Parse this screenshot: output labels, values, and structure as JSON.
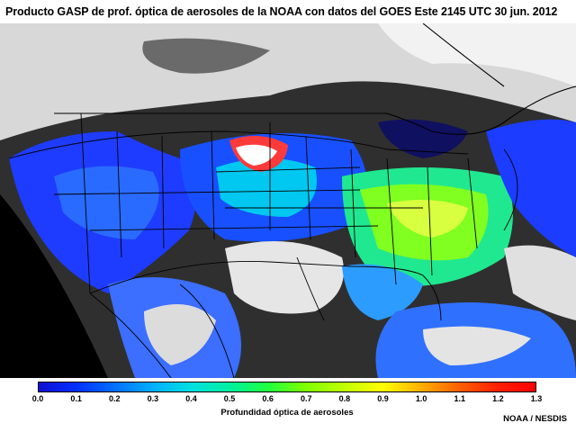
{
  "title": "Producto GASP de prof. óptica de aerosoles de la NOAA con datos del GOES Este  2145 UTC 30 jun. 2012",
  "colorbar": {
    "label": "Profundidad óptica de aerosoles",
    "min": 0.0,
    "max": 1.3,
    "ticks": [
      "0.0",
      "0.1",
      "0.2",
      "0.3",
      "0.4",
      "0.5",
      "0.6",
      "0.7",
      "0.8",
      "0.9",
      "1.0",
      "1.1",
      "1.2",
      "1.3"
    ],
    "colors": [
      "#1010d0",
      "#0030ff",
      "#0070ff",
      "#00b0ff",
      "#00e0e0",
      "#00f0a0",
      "#20ff40",
      "#80ff00",
      "#c0ff00",
      "#ffff00",
      "#ffb000",
      "#ff6000",
      "#ff2000",
      "#ff0000"
    ]
  },
  "credit": "NOAA / NESDIS",
  "map": {
    "land_aod_colors": [
      "#1830ff",
      "#00a0ff",
      "#00e8e8",
      "#20ff60",
      "#ffe000",
      "#ff3030"
    ],
    "cloud_color": "#e8e8e8",
    "ocean_color": "#2a2a2a"
  }
}
